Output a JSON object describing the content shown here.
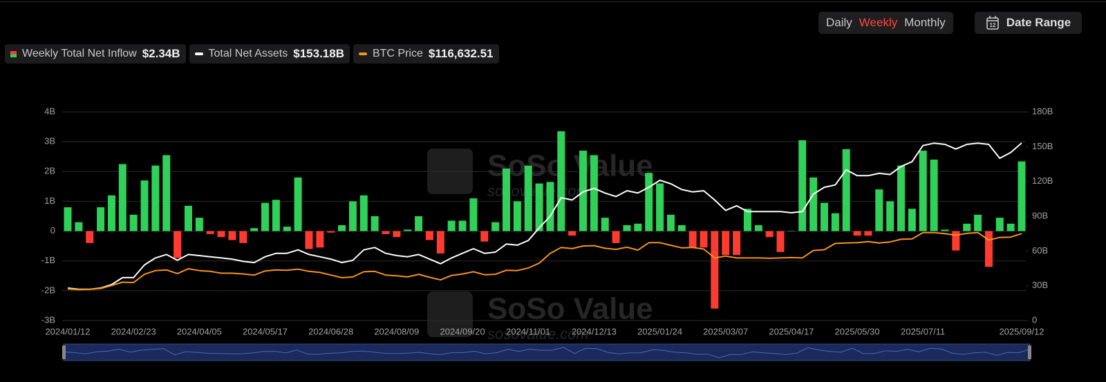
{
  "controls": {
    "periods": [
      "Daily",
      "Weekly",
      "Monthly"
    ],
    "active_period": 1,
    "date_range": "Date Range",
    "calendar_icon": "12"
  },
  "watermark": {
    "logo": "SoSo Value",
    "url": "sosovalue.com"
  },
  "chart_data": {
    "type": "bar",
    "categories": [
      "2024/01/12",
      null,
      null,
      null,
      null,
      null,
      "2024/02/23",
      null,
      null,
      null,
      null,
      null,
      "2024/04/05",
      null,
      null,
      null,
      null,
      null,
      "2024/05/17",
      null,
      null,
      null,
      null,
      null,
      "2024/06/28",
      null,
      null,
      null,
      null,
      null,
      "2024/08/09",
      null,
      null,
      null,
      null,
      null,
      "2024/09/20",
      null,
      null,
      null,
      null,
      null,
      "2024/11/01",
      null,
      null,
      null,
      null,
      null,
      "2024/12/13",
      null,
      null,
      null,
      null,
      null,
      "2025/01/24",
      null,
      null,
      null,
      null,
      null,
      "2025/03/07",
      null,
      null,
      null,
      null,
      null,
      "2025/04/17",
      null,
      null,
      null,
      null,
      null,
      "2025/05/30",
      null,
      null,
      null,
      null,
      null,
      "2025/07/11",
      null,
      null,
      null,
      null,
      null,
      null,
      null,
      null,
      "2025/09/12"
    ],
    "series": [
      {
        "name": "Weekly Total Net Inflow",
        "legend_value": "$2.34B",
        "type": "bar",
        "color": "#30d158",
        "negative_color": "#ff3b30",
        "axis": "y",
        "values": [
          0.8,
          0.3,
          -0.4,
          0.8,
          1.2,
          2.25,
          0.55,
          1.7,
          2.2,
          2.55,
          -0.9,
          0.85,
          0.45,
          -0.1,
          -0.2,
          -0.3,
          -0.4,
          0.1,
          0.95,
          1.05,
          0.15,
          1.8,
          -0.6,
          -0.55,
          -0.05,
          0.2,
          1.0,
          1.2,
          0.5,
          -0.1,
          -0.2,
          0.05,
          0.5,
          -0.3,
          -0.75,
          0.35,
          0.35,
          1.1,
          -0.35,
          0.3,
          2.1,
          1.0,
          2.2,
          1.6,
          1.65,
          3.35,
          -0.15,
          2.7,
          2.55,
          0.45,
          -0.4,
          0.2,
          0.25,
          1.95,
          1.6,
          0.55,
          0.2,
          -0.55,
          -0.55,
          -2.6,
          -0.8,
          -0.8,
          0.75,
          0.2,
          -0.2,
          -0.7,
          0,
          3.05,
          1.8,
          0.95,
          0.6,
          2.75,
          -0.15,
          -0.15,
          1.4,
          1.0,
          2.2,
          0.75,
          2.7,
          2.4,
          0.05,
          -0.65,
          0.25,
          0.55,
          -1.2,
          0.45,
          0.25,
          2.34
        ]
      },
      {
        "name": "Total Net Assets",
        "legend_value": "$153.18B",
        "type": "line",
        "color": "#ffffff",
        "axis": "y2",
        "values": [
          28,
          27,
          27,
          28,
          31,
          37,
          37,
          48,
          54,
          57,
          52,
          57,
          56,
          55,
          54,
          53,
          51,
          50,
          55,
          58,
          58,
          61,
          57,
          55,
          53,
          50,
          52,
          61,
          63,
          58,
          56,
          55,
          57,
          53,
          49,
          54,
          58,
          62,
          58,
          59,
          66,
          65,
          69,
          80,
          90,
          106,
          104,
          111,
          114,
          110,
          107,
          112,
          110,
          115,
          121,
          118,
          113,
          111,
          112,
          104,
          95,
          99,
          94,
          94,
          94,
          94,
          93,
          94,
          109,
          115,
          117,
          130,
          125,
          125,
          127,
          126,
          133,
          137,
          151,
          153,
          152,
          148,
          152,
          153,
          152,
          140,
          145,
          153.18
        ]
      },
      {
        "name": "BTC Price",
        "legend_value": "$116,632.51",
        "type": "line",
        "color": "#f7931a",
        "axis": "y3",
        "values": [
          42500,
          41500,
          41800,
          43000,
          47000,
          51500,
          51000,
          62000,
          67000,
          68000,
          63000,
          69500,
          67000,
          66000,
          63500,
          63500,
          62500,
          61000,
          66500,
          68000,
          67500,
          69000,
          66000,
          64500,
          61000,
          57500,
          58500,
          65500,
          66000,
          61000,
          60000,
          58500,
          62000,
          58000,
          54500,
          60500,
          62500,
          65500,
          61500,
          62000,
          67500,
          67000,
          70500,
          77000,
          90000,
          98000,
          96500,
          100000,
          100500,
          97000,
          95500,
          98500,
          94500,
          104500,
          104500,
          101000,
          97500,
          98000,
          96000,
          84000,
          86500,
          84000,
          84000,
          84000,
          83500,
          84000,
          84500,
          84000,
          94000,
          95000,
          103500,
          104000,
          104500,
          106000,
          104000,
          105500,
          109000,
          109500,
          118000,
          118000,
          116500,
          114500,
          117000,
          118000,
          108000,
          111500,
          112000,
          116632.51
        ]
      }
    ],
    "ylim": [
      -3,
      4
    ],
    "yticks": [
      {
        "value": -3,
        "label": "-3B"
      },
      {
        "value": -2,
        "label": "-2B"
      },
      {
        "value": -1,
        "label": "-1B"
      },
      0,
      {
        "value": 1,
        "label": "1B"
      },
      {
        "value": 2,
        "label": "2B"
      },
      {
        "value": 3,
        "label": "3B"
      },
      {
        "value": 4,
        "label": "4B"
      }
    ],
    "y2lim": [
      0,
      180
    ],
    "y2ticks": [
      0,
      {
        "value": 30,
        "label": "30B"
      },
      {
        "value": 60,
        "label": "60B"
      },
      {
        "value": 90,
        "label": "90B"
      },
      {
        "value": 120,
        "label": "120B"
      },
      {
        "value": 150,
        "label": "150B"
      },
      {
        "value": 180,
        "label": "180B"
      }
    ],
    "y3lim": [
      0,
      280000
    ],
    "grid": true,
    "navigator": true
  }
}
